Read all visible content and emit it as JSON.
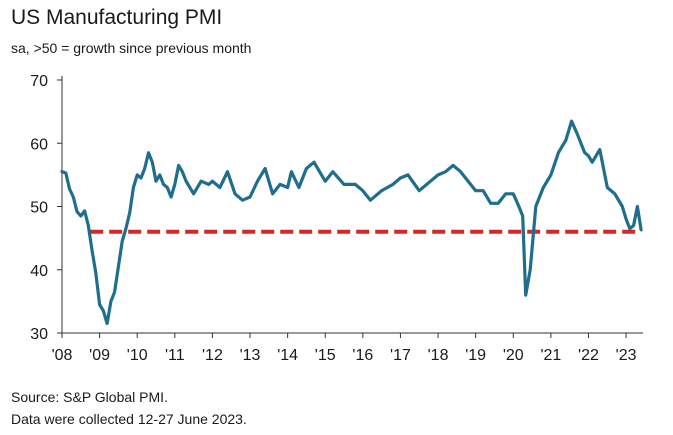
{
  "chart_data": {
    "type": "line",
    "title": "US Manufacturing PMI",
    "subtitle": "sa, >50 = growth since previous month",
    "ylim": [
      30,
      70
    ],
    "xlim": [
      2008.0,
      2023.45
    ],
    "y_ticks": [
      30,
      40,
      50,
      60,
      70
    ],
    "y_tick_labels": [
      "30",
      "40",
      "50",
      "60",
      "70"
    ],
    "x_ticks": [
      2008,
      2009,
      2010,
      2011,
      2012,
      2013,
      2014,
      2015,
      2016,
      2017,
      2018,
      2019,
      2020,
      2021,
      2022,
      2023
    ],
    "x_tick_labels": [
      "'08",
      "'09",
      "'10",
      "'11",
      "'12",
      "'13",
      "'14",
      "'15",
      "'16",
      "'17",
      "'18",
      "'19",
      "'20",
      "'21",
      "'22",
      "'23"
    ],
    "series": [
      {
        "name": "US Manufacturing PMI",
        "color": "#1f6e8c",
        "x": [
          2008.0,
          2008.1,
          2008.2,
          2008.3,
          2008.4,
          2008.5,
          2008.6,
          2008.7,
          2008.8,
          2008.9,
          2009.0,
          2009.1,
          2009.2,
          2009.3,
          2009.4,
          2009.5,
          2009.6,
          2009.7,
          2009.8,
          2009.9,
          2010.0,
          2010.1,
          2010.2,
          2010.3,
          2010.4,
          2010.5,
          2010.6,
          2010.7,
          2010.8,
          2010.9,
          2011.0,
          2011.1,
          2011.2,
          2011.3,
          2011.5,
          2011.7,
          2011.9,
          2012.0,
          2012.2,
          2012.4,
          2012.6,
          2012.8,
          2013.0,
          2013.2,
          2013.4,
          2013.6,
          2013.8,
          2014.0,
          2014.1,
          2014.3,
          2014.5,
          2014.7,
          2014.9,
          2015.0,
          2015.2,
          2015.5,
          2015.8,
          2016.0,
          2016.2,
          2016.5,
          2016.8,
          2017.0,
          2017.2,
          2017.5,
          2017.8,
          2018.0,
          2018.2,
          2018.4,
          2018.6,
          2018.8,
          2019.0,
          2019.2,
          2019.4,
          2019.6,
          2019.8,
          2020.0,
          2020.15,
          2020.25,
          2020.33,
          2020.45,
          2020.6,
          2020.8,
          2021.0,
          2021.2,
          2021.4,
          2021.55,
          2021.7,
          2021.9,
          2022.0,
          2022.1,
          2022.3,
          2022.5,
          2022.7,
          2022.9,
          2023.0,
          2023.1,
          2023.2,
          2023.3,
          2023.4
        ],
        "values": [
          55.5,
          55.3,
          52.8,
          51.5,
          49.2,
          48.5,
          49.3,
          47.0,
          43.0,
          39.5,
          34.5,
          33.5,
          31.5,
          35.0,
          36.5,
          40.5,
          44.5,
          46.5,
          49.0,
          53.0,
          55.0,
          54.5,
          56.0,
          58.5,
          57.0,
          54.0,
          55.0,
          53.5,
          53.0,
          51.5,
          53.5,
          56.5,
          55.5,
          54.0,
          52.0,
          54.0,
          53.5,
          54.0,
          53.0,
          55.5,
          52.0,
          51.0,
          51.5,
          54.0,
          56.0,
          52.0,
          53.5,
          53.0,
          55.5,
          53.0,
          56.0,
          57.0,
          55.0,
          54.0,
          55.5,
          53.5,
          53.5,
          52.5,
          51.0,
          52.5,
          53.5,
          54.5,
          55.0,
          52.5,
          54.0,
          55.0,
          55.5,
          56.5,
          55.5,
          54.0,
          52.5,
          52.5,
          50.5,
          50.5,
          52.0,
          52.0,
          50.0,
          48.5,
          36.0,
          40.0,
          50.0,
          53.0,
          55.0,
          58.5,
          60.5,
          63.5,
          61.5,
          58.5,
          58.0,
          57.0,
          59.0,
          53.0,
          52.0,
          50.0,
          48.0,
          46.5,
          47.0,
          50.0,
          46.3
        ]
      }
    ],
    "reference_line": {
      "value": 46.0,
      "x_start": 2008.75,
      "x_end": 2023.4,
      "color": "#d62728",
      "style": "dashed"
    }
  },
  "footer": {
    "source": "Source: S&P Global PMI.",
    "note": "Data were collected 12-27 June 2023."
  }
}
